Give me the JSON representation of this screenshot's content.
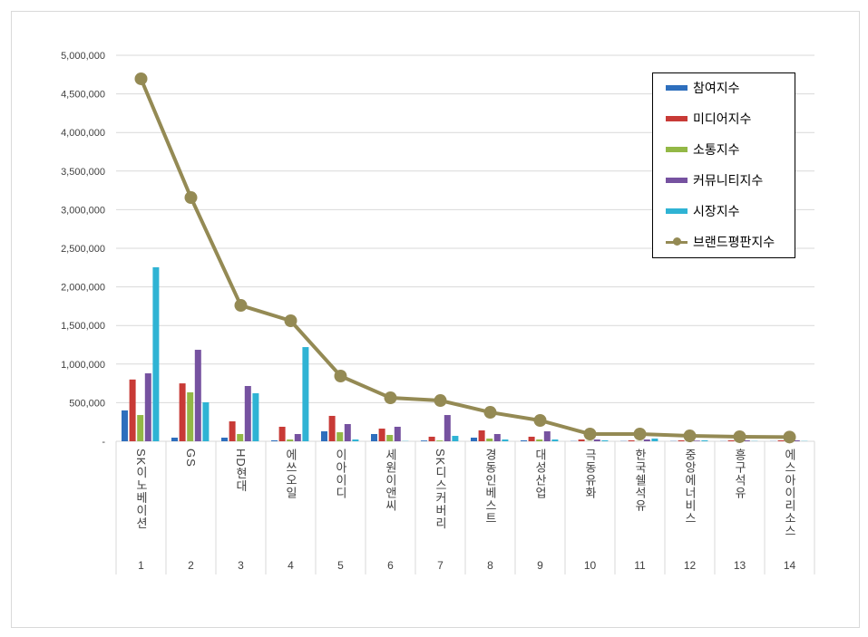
{
  "chart_data": {
    "type": "bar",
    "title": "",
    "xlabel": "",
    "ylabel": "",
    "ylim": [
      0,
      5000000
    ],
    "yticks": [
      0,
      500000,
      1000000,
      1500000,
      2000000,
      2500000,
      3000000,
      3500000,
      4000000,
      4500000,
      5000000
    ],
    "ytick_labels": [
      "-",
      "500,000",
      "1,000,000",
      "1,500,000",
      "2,000,000",
      "2,500,000",
      "3,000,000",
      "3,500,000",
      "4,000,000",
      "4,500,000",
      "5,000,000"
    ],
    "grid": true,
    "legend_position": "top-right",
    "categories": [
      "SK이노베이션",
      "GS",
      "HD현대",
      "에쓰오일",
      "이아이디",
      "세원이앤씨",
      "SK디스커버리",
      "경동인베스트",
      "대성산업",
      "극동유화",
      "한국쉘석유",
      "중앙에너비스",
      "흥구석유",
      "에스아이리소스"
    ],
    "ranks": [
      "1",
      "2",
      "3",
      "4",
      "5",
      "6",
      "7",
      "8",
      "9",
      "10",
      "11",
      "12",
      "13",
      "14"
    ],
    "series": [
      {
        "name": "참여지수",
        "type": "bar",
        "color": "#2e6fbd",
        "values": [
          400000,
          47000,
          47000,
          12000,
          129000,
          94000,
          10000,
          47000,
          12000,
          3000,
          3000,
          3000,
          2000,
          2000
        ]
      },
      {
        "name": "미디어지수",
        "type": "bar",
        "color": "#c83a36",
        "values": [
          800000,
          750000,
          258000,
          188000,
          329000,
          164000,
          59000,
          141000,
          59000,
          23000,
          12000,
          12000,
          12000,
          12000
        ]
      },
      {
        "name": "소통지수",
        "type": "bar",
        "color": "#93b846",
        "values": [
          340000,
          634000,
          94000,
          23000,
          117000,
          82000,
          10000,
          35000,
          23000,
          3000,
          2000,
          2000,
          2000,
          2000
        ]
      },
      {
        "name": "커뮤니티지수",
        "type": "bar",
        "color": "#7652a0",
        "values": [
          880000,
          1185000,
          716000,
          94000,
          223000,
          188000,
          340000,
          94000,
          129000,
          23000,
          23000,
          8000,
          12000,
          12000
        ]
      },
      {
        "name": "시장지수",
        "type": "bar",
        "color": "#2fb3d4",
        "values": [
          2254000,
          505000,
          622000,
          1220000,
          23000,
          3000,
          70000,
          23000,
          23000,
          12000,
          35000,
          12000,
          3000,
          3000
        ]
      },
      {
        "name": "브랜드평판지수",
        "type": "line",
        "color": "#948a54",
        "values": [
          4695000,
          3157000,
          1760000,
          1561000,
          845000,
          563000,
          528000,
          375000,
          270000,
          94000,
          94000,
          70000,
          59000,
          55000
        ]
      }
    ]
  }
}
